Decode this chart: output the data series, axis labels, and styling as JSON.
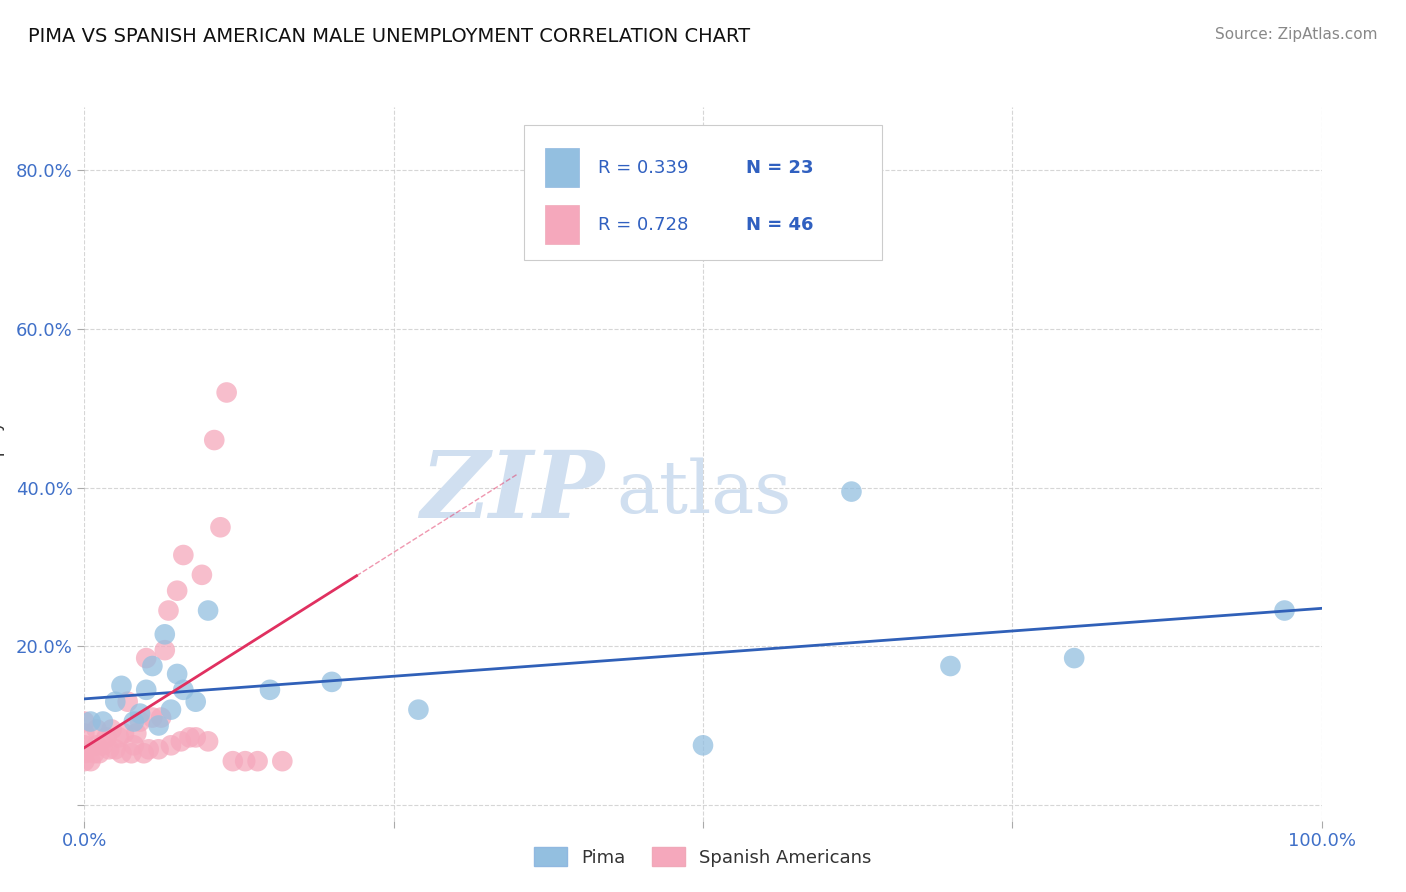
{
  "title": "PIMA VS SPANISH AMERICAN MALE UNEMPLOYMENT CORRELATION CHART",
  "source_text": "Source: ZipAtlas.com",
  "ylabel": "Male Unemployment",
  "xlim": [
    0.0,
    1.0
  ],
  "ylim": [
    -0.02,
    0.88
  ],
  "x_tick_pos": [
    0.0,
    0.25,
    0.5,
    0.75,
    1.0
  ],
  "x_tick_labels": [
    "0.0%",
    "",
    "",
    "",
    "100.0%"
  ],
  "y_tick_pos": [
    0.0,
    0.2,
    0.4,
    0.6,
    0.8
  ],
  "y_tick_labels": [
    "",
    "20.0%",
    "40.0%",
    "60.0%",
    "80.0%"
  ],
  "pima_color": "#93bfe0",
  "spanish_color": "#f5a8bc",
  "pima_line_color": "#3060b8",
  "spanish_line_color": "#e03060",
  "background_color": "#ffffff",
  "grid_color": "#cccccc",
  "watermark_zip": "ZIP",
  "watermark_atlas": "atlas",
  "watermark_color": "#d0dff0",
  "legend_r_pima": "R = 0.339",
  "legend_n_pima": "N = 23",
  "legend_r_spanish": "R = 0.728",
  "legend_n_spanish": "N = 46",
  "pima_label": "Pima",
  "spanish_label": "Spanish Americans",
  "pima_x": [
    0.005,
    0.015,
    0.025,
    0.03,
    0.04,
    0.045,
    0.05,
    0.055,
    0.06,
    0.065,
    0.07,
    0.075,
    0.08,
    0.09,
    0.1,
    0.15,
    0.2,
    0.27,
    0.5,
    0.62,
    0.7,
    0.8,
    0.97
  ],
  "pima_y": [
    0.105,
    0.105,
    0.13,
    0.15,
    0.105,
    0.115,
    0.145,
    0.175,
    0.1,
    0.215,
    0.12,
    0.165,
    0.145,
    0.13,
    0.245,
    0.145,
    0.155,
    0.12,
    0.075,
    0.395,
    0.175,
    0.185,
    0.245
  ],
  "spanish_x": [
    0.0,
    0.0,
    0.0,
    0.0,
    0.0,
    0.005,
    0.008,
    0.01,
    0.01,
    0.012,
    0.015,
    0.018,
    0.02,
    0.022,
    0.025,
    0.028,
    0.03,
    0.032,
    0.035,
    0.038,
    0.04,
    0.042,
    0.045,
    0.048,
    0.05,
    0.052,
    0.055,
    0.06,
    0.062,
    0.065,
    0.068,
    0.07,
    0.075,
    0.078,
    0.08,
    0.085,
    0.09,
    0.095,
    0.1,
    0.105,
    0.11,
    0.115,
    0.12,
    0.13,
    0.14,
    0.16
  ],
  "spanish_y": [
    0.055,
    0.065,
    0.075,
    0.09,
    0.105,
    0.055,
    0.065,
    0.075,
    0.095,
    0.065,
    0.075,
    0.085,
    0.07,
    0.095,
    0.07,
    0.085,
    0.065,
    0.09,
    0.13,
    0.065,
    0.075,
    0.09,
    0.105,
    0.065,
    0.185,
    0.07,
    0.11,
    0.07,
    0.11,
    0.195,
    0.245,
    0.075,
    0.27,
    0.08,
    0.315,
    0.085,
    0.085,
    0.29,
    0.08,
    0.46,
    0.35,
    0.52,
    0.055,
    0.055,
    0.055,
    0.055
  ]
}
